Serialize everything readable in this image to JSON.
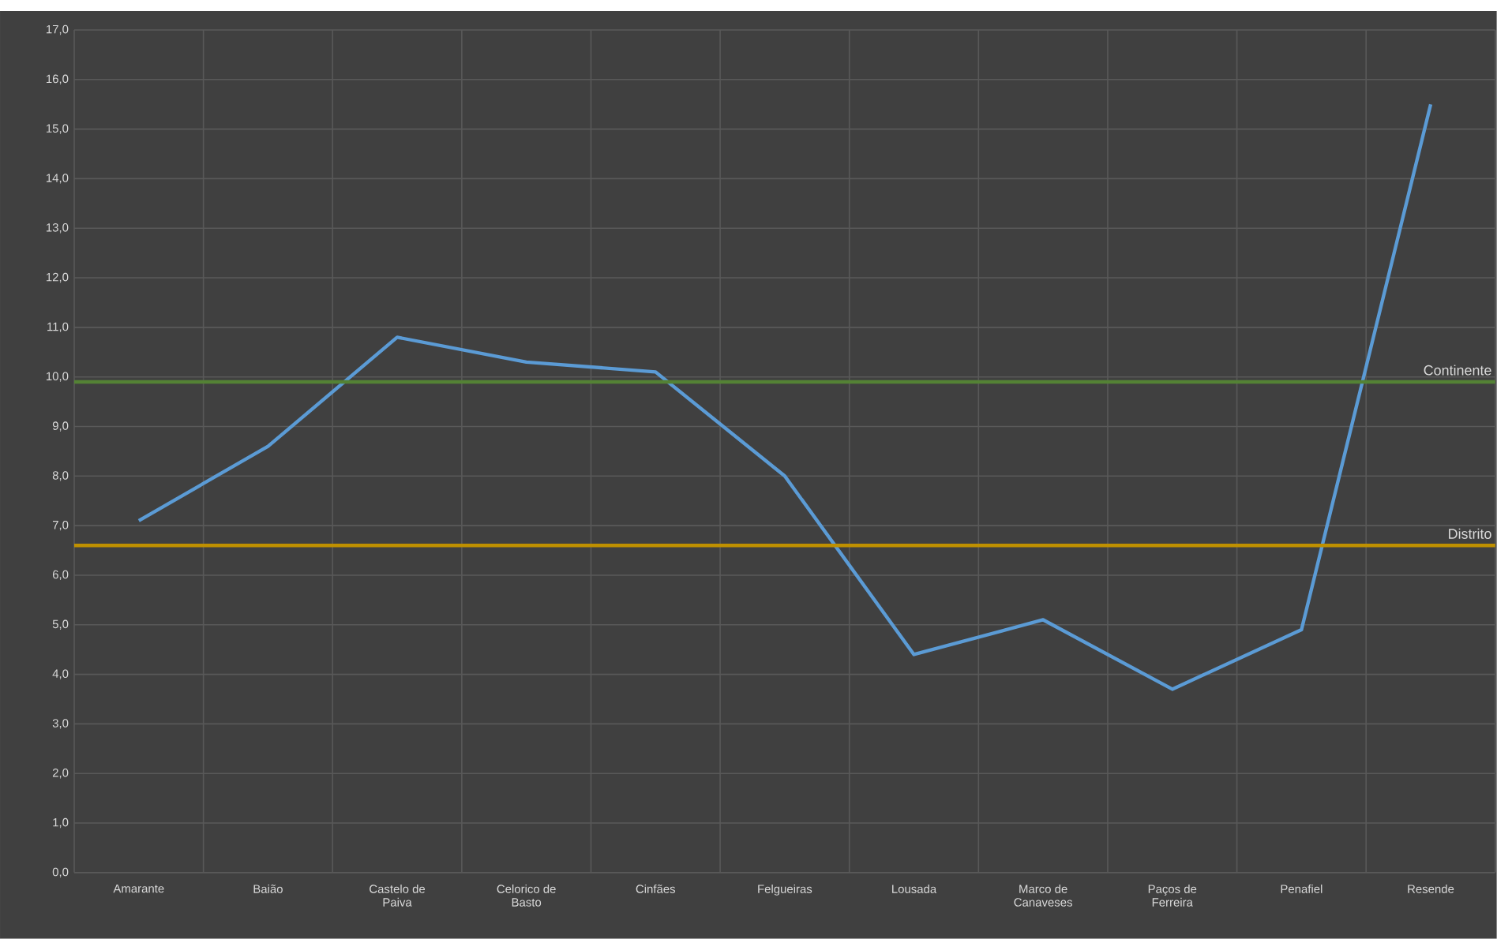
{
  "chart_data": {
    "type": "line",
    "categories": [
      "Amarante",
      "Baião",
      "Castelo de Paiva",
      "Celorico de Basto",
      "Cinfães",
      "Felgueiras",
      "Lousada",
      "Marco de Canaveses",
      "Paços de Ferreira",
      "Penafiel",
      "Resende"
    ],
    "series": [
      {
        "color": "#5b9bd5",
        "values": [
          7.1,
          8.6,
          10.8,
          10.3,
          10.1,
          8.0,
          4.4,
          5.1,
          3.7,
          4.9,
          15.5
        ]
      }
    ],
    "ylim": [
      0,
      17
    ],
    "yticks": [
      {
        "value": 0,
        "label": "0,0"
      },
      {
        "value": 1,
        "label": "1,0"
      },
      {
        "value": 2,
        "label": "2,0"
      },
      {
        "value": 3,
        "label": "3,0"
      },
      {
        "value": 4,
        "label": "4,0"
      },
      {
        "value": 5,
        "label": "5,0"
      },
      {
        "value": 6,
        "label": "6,0"
      },
      {
        "value": 7,
        "label": "7,0"
      },
      {
        "value": 8,
        "label": "8,0"
      },
      {
        "value": 9,
        "label": "9,0"
      },
      {
        "value": 10,
        "label": "10,0"
      },
      {
        "value": 11,
        "label": "11,0"
      },
      {
        "value": 12,
        "label": "12,0"
      },
      {
        "value": 13,
        "label": "13,0"
      },
      {
        "value": 14,
        "label": "14,0"
      },
      {
        "value": 15,
        "label": "15,0"
      },
      {
        "value": 16,
        "label": "16,0"
      },
      {
        "value": 17,
        "label": "17,0"
      }
    ],
    "ref_lines": [
      {
        "axis": "y",
        "value": 9.9,
        "label": "Continente",
        "color": "#548235"
      },
      {
        "axis": "y",
        "value": 6.6,
        "label": "Distrito",
        "color": "#bf9000"
      }
    ],
    "grid": true,
    "marker": "none",
    "line_style": "solid"
  }
}
